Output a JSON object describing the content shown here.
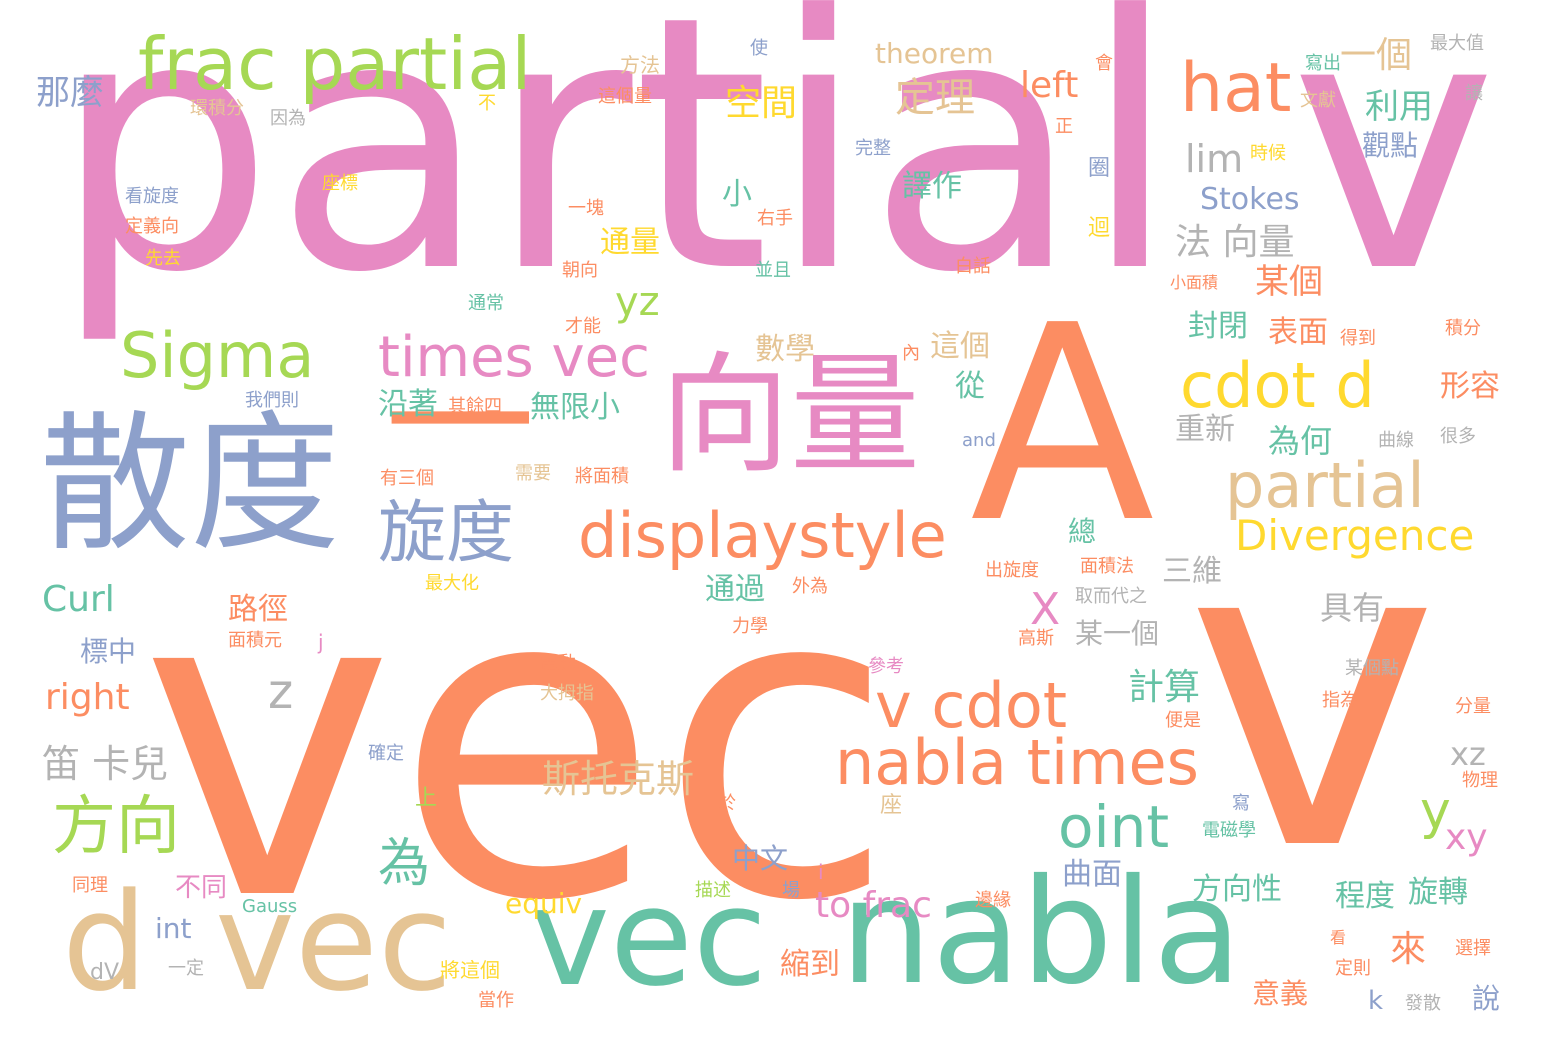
{
  "colors": {
    "pink": "#e78ac3",
    "orange": "#fc8d62",
    "teal": "#66c2a5",
    "blue": "#8da0cb",
    "green": "#a6d854",
    "yellow": "#ffd92f",
    "tan": "#e5c494",
    "gray": "#b3b3b3"
  },
  "words": [
    "partial v",
    "vec",
    "v",
    "A",
    "散度",
    "向量",
    "一",
    "vec",
    "d",
    "vec",
    "nabla",
    "frac partial",
    "hat",
    "Sigma",
    "times vec",
    "cdot d",
    "partial",
    "displaystyle",
    "旋度",
    "Divergence",
    "方向",
    "為",
    "v cdot",
    "nabla times",
    "oint",
    "X",
    "z",
    "y",
    "xy",
    "xz",
    "Curl",
    "right",
    "笛 卡兒",
    "斯托克斯",
    "計算",
    "路徑",
    "標中",
    "那麼",
    "空間",
    "定理",
    "left",
    "一個",
    "利用",
    "觀點",
    "lim",
    "Stokes",
    "法 向量",
    "某個",
    "表面",
    "封閉",
    "yz",
    "通量",
    "小",
    "右手",
    "譯作",
    "數學",
    "這個",
    "沿著",
    "無限小",
    "從",
    "為何",
    "重新",
    "形容",
    "三維",
    "具有",
    "某一個",
    "通過",
    "總",
    "to frac",
    "縮到",
    "程度",
    "旋轉",
    "方向性",
    "意義",
    "來",
    "曲面",
    "中文",
    "不同",
    "equiv",
    "int",
    "dV",
    "一定",
    "將這個",
    "當作",
    "Gauss",
    "同理",
    "描述",
    "k",
    "說",
    "theorem",
    "方法",
    "環積分",
    "因為",
    "這個量",
    "不",
    "使",
    "會",
    "寫出",
    "最大值",
    "讓",
    "文獻",
    "時候",
    "完整",
    "正",
    "圈",
    "迴",
    "座標",
    "看旋度",
    "定義向",
    "先去",
    "一塊",
    "朝向",
    "並且",
    "白話",
    "小面積",
    "通常",
    "才能",
    "得到",
    "積分",
    "內",
    "我們則",
    "其餘四",
    "and",
    "曲線",
    "很多",
    "有三個",
    "需要",
    "將面積",
    "面積法",
    "出旋度",
    "最大化",
    "外為",
    "取而代之",
    "力學",
    "j",
    "面積元",
    "高斯",
    "參考",
    "電動",
    "大拇指",
    "某個點",
    "指為",
    "分量",
    "便是",
    "物理",
    "確定",
    "上",
    "於",
    "座",
    "寫",
    "電磁學",
    "i",
    "場",
    "邊緣",
    "選擇",
    "定則",
    "看",
    "發散"
  ]
}
